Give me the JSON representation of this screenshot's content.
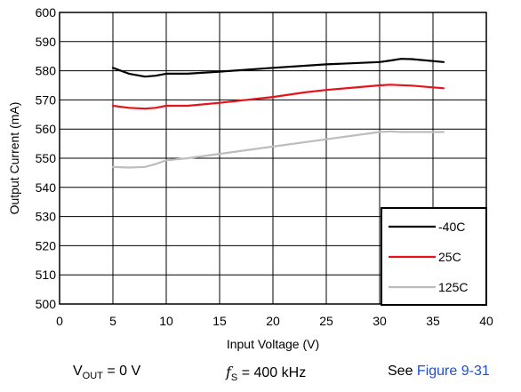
{
  "chart_data": {
    "type": "line",
    "xlabel": "Input Voltage (V)",
    "ylabel": "Output Current (mA)",
    "xlim": [
      0,
      40
    ],
    "ylim": [
      500,
      600
    ],
    "x_ticks": [
      "0",
      "5",
      "10",
      "15",
      "20",
      "25",
      "30",
      "35",
      "40"
    ],
    "y_ticks": [
      "500",
      "510",
      "520",
      "530",
      "540",
      "550",
      "560",
      "570",
      "580",
      "590",
      "600"
    ],
    "grid": true,
    "legend_position": "bottom-right",
    "series": [
      {
        "name": "-40C",
        "color": "#000000",
        "points": [
          [
            5,
            581
          ],
          [
            6.5,
            579
          ],
          [
            8,
            578
          ],
          [
            9,
            578.3
          ],
          [
            10,
            579
          ],
          [
            12,
            579
          ],
          [
            15,
            579.7
          ],
          [
            20,
            581
          ],
          [
            25,
            582.2
          ],
          [
            30,
            583
          ],
          [
            31,
            583.5
          ],
          [
            32,
            584.1
          ],
          [
            33,
            584
          ],
          [
            36,
            583
          ]
        ]
      },
      {
        "name": "25C",
        "color": "#e8121b",
        "points": [
          [
            5,
            568
          ],
          [
            6.5,
            567.3
          ],
          [
            8,
            567
          ],
          [
            9,
            567.3
          ],
          [
            10,
            568
          ],
          [
            12,
            568
          ],
          [
            15,
            569
          ],
          [
            20,
            571
          ],
          [
            23,
            572.6
          ],
          [
            25,
            573.4
          ],
          [
            30,
            575
          ],
          [
            31,
            575.2
          ],
          [
            33,
            574.9
          ],
          [
            36,
            574
          ]
        ]
      },
      {
        "name": "125C",
        "color": "#bdbdbd",
        "points": [
          [
            5,
            547
          ],
          [
            6.5,
            546.8
          ],
          [
            8,
            547
          ],
          [
            9,
            548
          ],
          [
            10,
            549.3
          ],
          [
            12,
            550
          ],
          [
            15,
            551.5
          ],
          [
            20,
            554
          ],
          [
            25,
            556.5
          ],
          [
            30,
            559
          ],
          [
            31,
            559.2
          ],
          [
            32,
            559
          ],
          [
            36,
            559
          ]
        ]
      }
    ]
  },
  "caption": {
    "vout_main": "V",
    "vout_sub": "OUT",
    "vout_value": " = 0 V",
    "fs_main": "f",
    "fs_sub": "S",
    "fs_value": " = 400 kHz",
    "see_text": "See ",
    "see_link": "Figure 9-31"
  }
}
